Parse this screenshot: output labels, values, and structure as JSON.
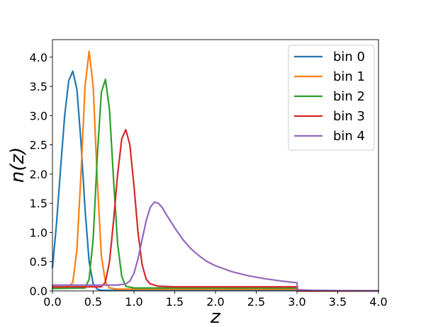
{
  "chart_data": {
    "type": "line",
    "xlabel": "z",
    "ylabel": "n(z)",
    "xlim": [
      0.0,
      4.0
    ],
    "ylim": [
      0.0,
      4.3
    ],
    "xticks": [
      "0.0",
      "0.5",
      "1.0",
      "1.5",
      "2.0",
      "2.5",
      "3.0",
      "3.5",
      "4.0"
    ],
    "yticks": [
      "0.0",
      "0.5",
      "1.0",
      "1.5",
      "2.0",
      "2.5",
      "3.0",
      "3.5",
      "4.0"
    ],
    "grid": false,
    "legend_position": "top-right",
    "series": [
      {
        "name": "bin 0",
        "color": "#1f77b4",
        "x": [
          0.0,
          0.05,
          0.1,
          0.15,
          0.2,
          0.25,
          0.3,
          0.35,
          0.4,
          0.45,
          0.5,
          0.55,
          0.6,
          1.0,
          2.0,
          3.0,
          3.01,
          4.0
        ],
        "y": [
          0.4,
          1.15,
          2.1,
          3.0,
          3.6,
          3.76,
          3.45,
          2.55,
          1.4,
          0.5,
          0.12,
          0.03,
          0.01,
          0.01,
          0.01,
          0.01,
          0.0,
          0.0
        ]
      },
      {
        "name": "bin 1",
        "color": "#ff7f0e",
        "x": [
          0.0,
          0.2,
          0.25,
          0.3,
          0.35,
          0.4,
          0.45,
          0.5,
          0.55,
          0.6,
          0.65,
          0.7,
          0.8,
          1.0,
          2.0,
          3.0,
          3.01,
          4.0
        ],
        "y": [
          0.05,
          0.06,
          0.15,
          0.7,
          2.0,
          3.5,
          4.1,
          3.5,
          1.9,
          0.6,
          0.15,
          0.05,
          0.03,
          0.03,
          0.03,
          0.03,
          0.0,
          0.0
        ]
      },
      {
        "name": "bin 2",
        "color": "#2ca02c",
        "x": [
          0.0,
          0.4,
          0.45,
          0.5,
          0.55,
          0.6,
          0.65,
          0.7,
          0.75,
          0.8,
          0.85,
          0.9,
          1.0,
          1.5,
          2.0,
          3.0,
          3.01,
          4.0
        ],
        "y": [
          0.04,
          0.05,
          0.2,
          0.9,
          2.3,
          3.4,
          3.62,
          3.1,
          1.9,
          0.8,
          0.25,
          0.08,
          0.05,
          0.05,
          0.05,
          0.05,
          0.0,
          0.0
        ]
      },
      {
        "name": "bin 3",
        "color": "#d62728",
        "x": [
          0.0,
          0.6,
          0.65,
          0.7,
          0.75,
          0.8,
          0.85,
          0.9,
          0.95,
          1.0,
          1.05,
          1.1,
          1.15,
          1.2,
          1.3,
          1.5,
          2.0,
          3.0,
          3.01,
          4.0
        ],
        "y": [
          0.07,
          0.07,
          0.15,
          0.5,
          1.2,
          2.0,
          2.6,
          2.76,
          2.5,
          1.8,
          1.0,
          0.45,
          0.2,
          0.12,
          0.08,
          0.07,
          0.07,
          0.07,
          0.0,
          0.0
        ]
      },
      {
        "name": "bin 4",
        "color": "#9467bd",
        "x": [
          0.0,
          0.8,
          0.9,
          0.95,
          1.0,
          1.05,
          1.1,
          1.15,
          1.2,
          1.25,
          1.3,
          1.35,
          1.4,
          1.5,
          1.6,
          1.7,
          1.8,
          1.9,
          2.0,
          2.2,
          2.4,
          2.6,
          2.8,
          3.0,
          3.01,
          3.2,
          3.5,
          4.0
        ],
        "y": [
          0.1,
          0.1,
          0.12,
          0.17,
          0.3,
          0.55,
          0.88,
          1.2,
          1.43,
          1.52,
          1.5,
          1.42,
          1.3,
          1.08,
          0.88,
          0.72,
          0.6,
          0.5,
          0.43,
          0.33,
          0.26,
          0.21,
          0.17,
          0.14,
          0.02,
          0.01,
          0.005,
          0.0
        ]
      }
    ]
  }
}
